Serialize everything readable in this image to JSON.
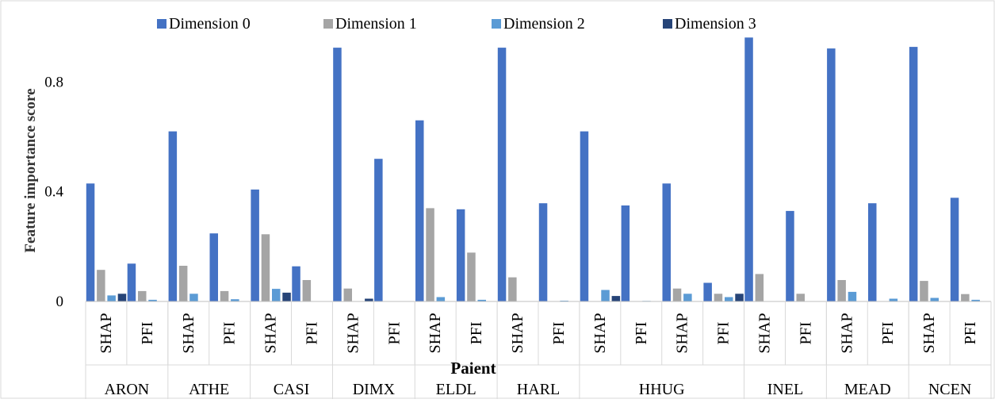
{
  "chart_data": {
    "type": "bar",
    "title": "",
    "xlabel": "Paient",
    "ylabel": "Feature importance score",
    "ylim": [
      0,
      0.96
    ],
    "yticks": [
      "0",
      "0.4",
      "0.8"
    ],
    "legend_position": "top",
    "grid": false,
    "colors": [
      "#4472C4",
      "#A5A5A5",
      "#5B9BD5",
      "#264478"
    ],
    "series_names": [
      "Dimension 0",
      "Dimension 1",
      "Dimension 2",
      "Dimension 3"
    ],
    "groups": [
      {
        "patient": "ARON",
        "methods": [
          {
            "method": "SHAP",
            "values": [
              0.43,
              0.115,
              0.022,
              0.028
            ]
          },
          {
            "method": "PFI",
            "values": [
              0.138,
              0.038,
              0.006,
              0.0
            ]
          }
        ]
      },
      {
        "patient": "ATHE",
        "methods": [
          {
            "method": "SHAP",
            "values": [
              0.62,
              0.13,
              0.028,
              0.0
            ]
          },
          {
            "method": "PFI",
            "values": [
              0.248,
              0.038,
              0.008,
              0.0
            ]
          }
        ]
      },
      {
        "patient": "CASI",
        "methods": [
          {
            "method": "SHAP",
            "values": [
              0.408,
              0.245,
              0.046,
              0.032
            ]
          },
          {
            "method": "PFI",
            "values": [
              0.128,
              0.078,
              0.0,
              0.0
            ]
          }
        ]
      },
      {
        "patient": "DIMX",
        "methods": [
          {
            "method": "SHAP",
            "values": [
              0.925,
              0.047,
              0.0,
              0.01
            ]
          },
          {
            "method": "PFI",
            "values": [
              0.52,
              0.0,
              0.0,
              0.0
            ]
          }
        ]
      },
      {
        "patient": "ELDL",
        "methods": [
          {
            "method": "SHAP",
            "values": [
              0.66,
              0.34,
              0.016,
              0.0
            ]
          },
          {
            "method": "PFI",
            "values": [
              0.336,
              0.178,
              0.006,
              0.0
            ]
          }
        ]
      },
      {
        "patient": "HARL",
        "methods": [
          {
            "method": "SHAP",
            "values": [
              0.925,
              0.088,
              0.0,
              0.0
            ]
          },
          {
            "method": "PFI",
            "values": [
              0.358,
              0.0,
              0.003,
              0.0
            ]
          }
        ]
      },
      {
        "patient": "HHUG",
        "methods": [
          {
            "method": "SHAP",
            "values": [
              0.62,
              0.0,
              0.042,
              0.02
            ]
          },
          {
            "method": "PFI",
            "values": [
              0.35,
              0.0,
              0.002,
              0.0
            ]
          },
          {
            "method": "SHAP",
            "values": [
              0.43,
              0.047,
              0.028,
              0.0
            ]
          },
          {
            "method": "PFI",
            "values": [
              0.068,
              0.028,
              0.016,
              0.028
            ]
          }
        ]
      },
      {
        "patient": "INEL",
        "methods": [
          {
            "method": "SHAP",
            "values": [
              0.962,
              0.1,
              0.0,
              0.0
            ]
          },
          {
            "method": "PFI",
            "values": [
              0.33,
              0.028,
              0.0,
              0.0
            ]
          }
        ]
      },
      {
        "patient": "MEAD",
        "methods": [
          {
            "method": "SHAP",
            "values": [
              0.922,
              0.078,
              0.035,
              0.0
            ]
          },
          {
            "method": "PFI",
            "values": [
              0.358,
              0.0,
              0.01,
              0.0
            ]
          }
        ]
      },
      {
        "patient": "NCEN",
        "methods": [
          {
            "method": "SHAP",
            "values": [
              0.928,
              0.075,
              0.013,
              0.0
            ]
          },
          {
            "method": "PFI",
            "values": [
              0.378,
              0.027,
              0.006,
              0.0
            ]
          }
        ]
      }
    ]
  }
}
